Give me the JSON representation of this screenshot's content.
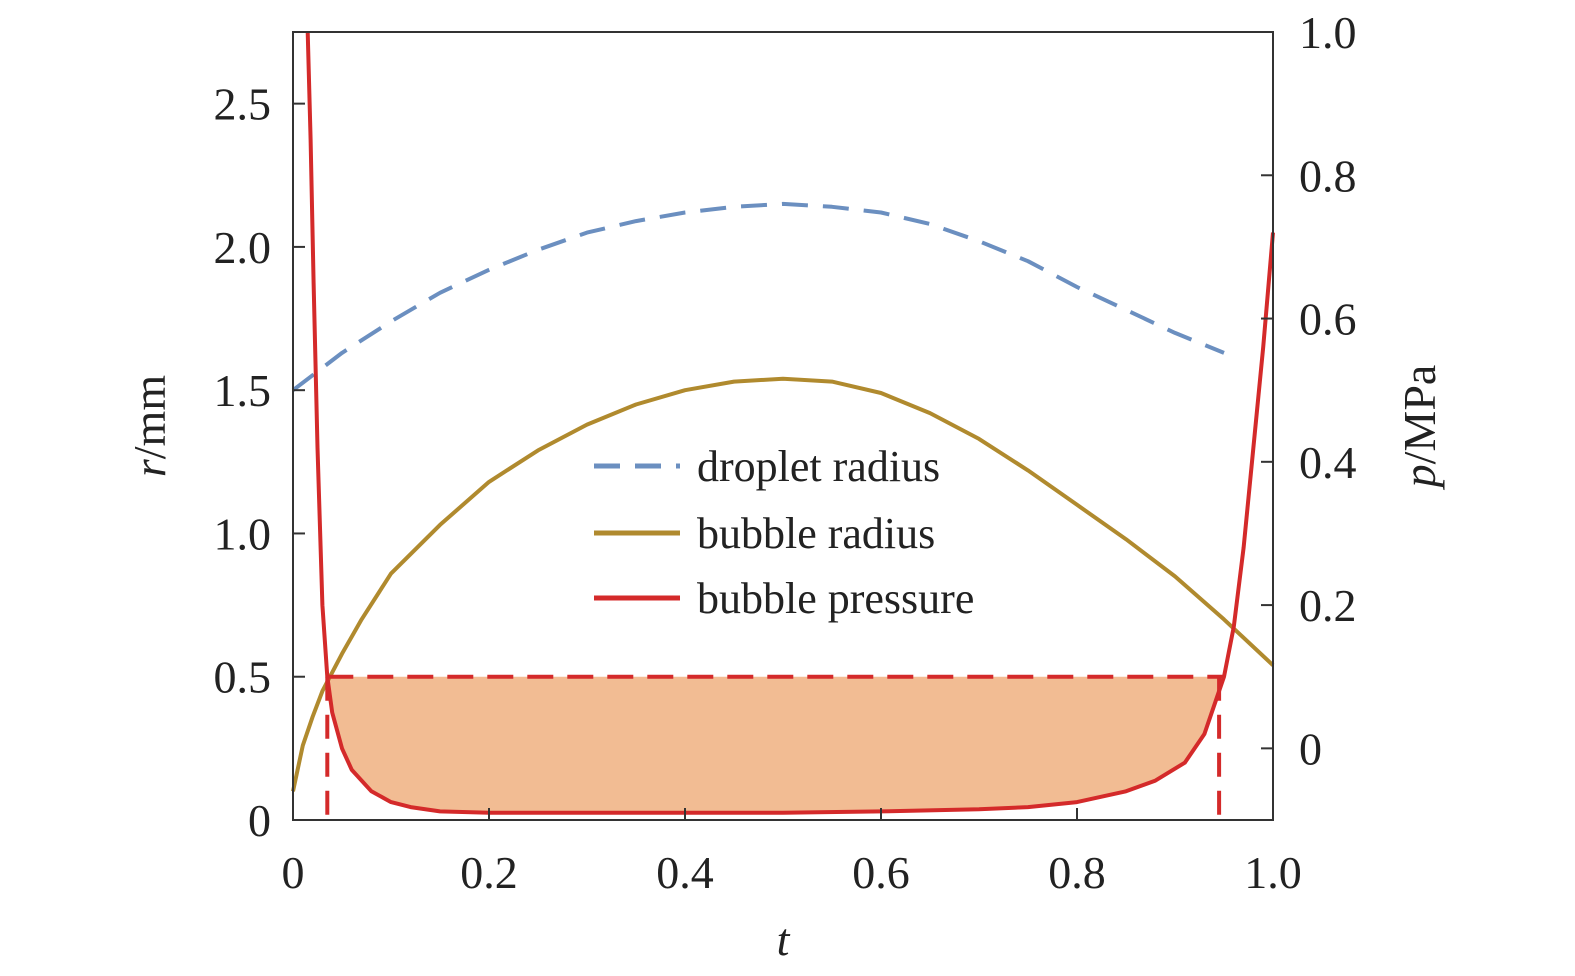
{
  "colors": {
    "droplet": "#6b8fc0",
    "bubble": "#b08a2e",
    "pressure": "#d42a2a",
    "fill": "#f2bc93",
    "axis": "#333333"
  },
  "chart_data": {
    "type": "line",
    "x_label_italic": "t",
    "y_left_label_italic": "r",
    "y_left_label_unit": "/mm",
    "y_right_label_italic": "p",
    "y_right_label_unit": "/MPa",
    "xlim": [
      0,
      1.0
    ],
    "ylim_left": [
      0,
      2.75
    ],
    "ylim_right": [
      -0.1,
      1.0
    ],
    "x_ticks": [
      "0",
      "0.2",
      "0.4",
      "0.6",
      "0.8",
      "1.0"
    ],
    "x_tick_values": [
      0,
      0.2,
      0.4,
      0.6,
      0.8,
      1.0
    ],
    "y_left_ticks": [
      "0",
      "0.5",
      "1.0",
      "1.5",
      "2.0",
      "2.5"
    ],
    "y_left_tick_values": [
      0,
      0.5,
      1.0,
      1.5,
      2.0,
      2.5
    ],
    "y_right_ticks": [
      "0",
      "0.2",
      "0.4",
      "0.6",
      "0.8",
      "1.0"
    ],
    "y_right_tick_values": [
      0,
      0.2,
      0.4,
      0.6,
      0.8,
      1.0
    ],
    "legend": {
      "position": "center",
      "entries": [
        "droplet radius",
        "bubble radius",
        "bubble pressure"
      ]
    },
    "series": [
      {
        "name": "droplet radius",
        "axis": "left",
        "style": "dashed",
        "x": [
          0.0,
          0.05,
          0.1,
          0.15,
          0.2,
          0.25,
          0.3,
          0.35,
          0.4,
          0.45,
          0.5,
          0.55,
          0.6,
          0.65,
          0.7,
          0.75,
          0.8,
          0.85,
          0.9,
          0.95
        ],
        "y": [
          1.5,
          1.63,
          1.74,
          1.84,
          1.92,
          1.99,
          2.05,
          2.09,
          2.12,
          2.14,
          2.15,
          2.14,
          2.12,
          2.08,
          2.02,
          1.95,
          1.86,
          1.78,
          1.7,
          1.63
        ]
      },
      {
        "name": "bubble radius",
        "axis": "left",
        "style": "solid",
        "x": [
          0.0,
          0.01,
          0.02,
          0.03,
          0.05,
          0.07,
          0.1,
          0.15,
          0.2,
          0.25,
          0.3,
          0.35,
          0.4,
          0.45,
          0.5,
          0.55,
          0.6,
          0.65,
          0.7,
          0.75,
          0.8,
          0.85,
          0.9,
          0.95,
          1.0
        ],
        "y": [
          0.1,
          0.26,
          0.36,
          0.45,
          0.58,
          0.7,
          0.86,
          1.03,
          1.18,
          1.29,
          1.38,
          1.45,
          1.5,
          1.53,
          1.54,
          1.53,
          1.49,
          1.42,
          1.33,
          1.22,
          1.1,
          0.98,
          0.85,
          0.7,
          0.54
        ]
      },
      {
        "name": "bubble pressure",
        "axis": "right",
        "style": "solid",
        "x": [
          0.015,
          0.018,
          0.021,
          0.025,
          0.03,
          0.035,
          0.04,
          0.05,
          0.06,
          0.08,
          0.1,
          0.12,
          0.15,
          0.2,
          0.3,
          0.4,
          0.5,
          0.6,
          0.7,
          0.75,
          0.8,
          0.85,
          0.88,
          0.91,
          0.93,
          0.95,
          0.96,
          0.97,
          0.98,
          0.99,
          1.0
        ],
        "y": [
          1.0,
          0.85,
          0.65,
          0.42,
          0.2,
          0.1,
          0.05,
          0.0,
          -0.03,
          -0.06,
          -0.075,
          -0.082,
          -0.088,
          -0.09,
          -0.09,
          -0.09,
          -0.09,
          -0.088,
          -0.085,
          -0.082,
          -0.075,
          -0.06,
          -0.045,
          -0.02,
          0.02,
          0.1,
          0.17,
          0.28,
          0.42,
          0.56,
          0.72
        ]
      }
    ],
    "threshold_line": {
      "axis": "right",
      "y": 0.1,
      "x_start": 0.035,
      "x_end": 0.95,
      "style": "dashed"
    },
    "vertical_markers": [
      0.035,
      0.945
    ],
    "shaded_region": {
      "x_start": 0.035,
      "x_end": 0.945,
      "y_top": 0.1
    }
  }
}
